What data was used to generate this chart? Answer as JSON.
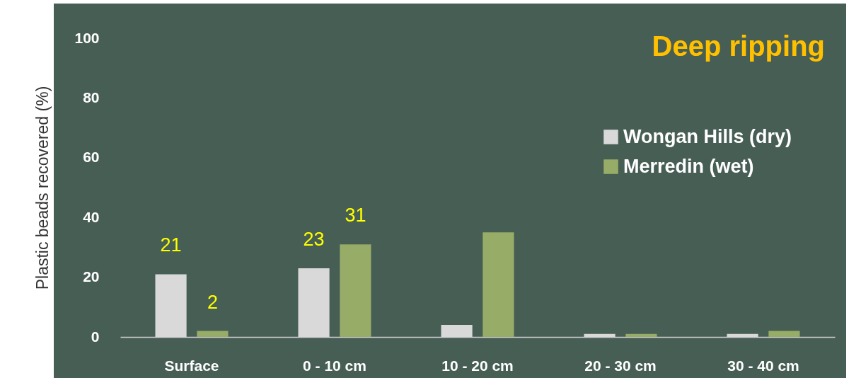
{
  "chart_data": {
    "type": "bar",
    "title": "Deep ripping",
    "ylabel": "Plastic beads recovered (%)",
    "categories": [
      "Surface",
      "0 - 10 cm",
      "10 - 20 cm",
      "20 - 30 cm",
      "30 - 40 cm"
    ],
    "series": [
      {
        "name": "Wongan Hills (dry)",
        "color": "#d9d9d9",
        "values": [
          21,
          23,
          4,
          1,
          1
        ],
        "value_labels": [
          "21",
          "23",
          null,
          null,
          null
        ]
      },
      {
        "name": "Merredin (wet)",
        "color": "#97ad67",
        "values": [
          2,
          31,
          35,
          1,
          2
        ],
        "value_labels": [
          "2",
          "31",
          null,
          null,
          null
        ]
      }
    ],
    "ylim": [
      0,
      100
    ],
    "yticks": [
      0,
      20,
      40,
      60,
      80,
      100
    ],
    "grid": false,
    "legend": "top right"
  }
}
